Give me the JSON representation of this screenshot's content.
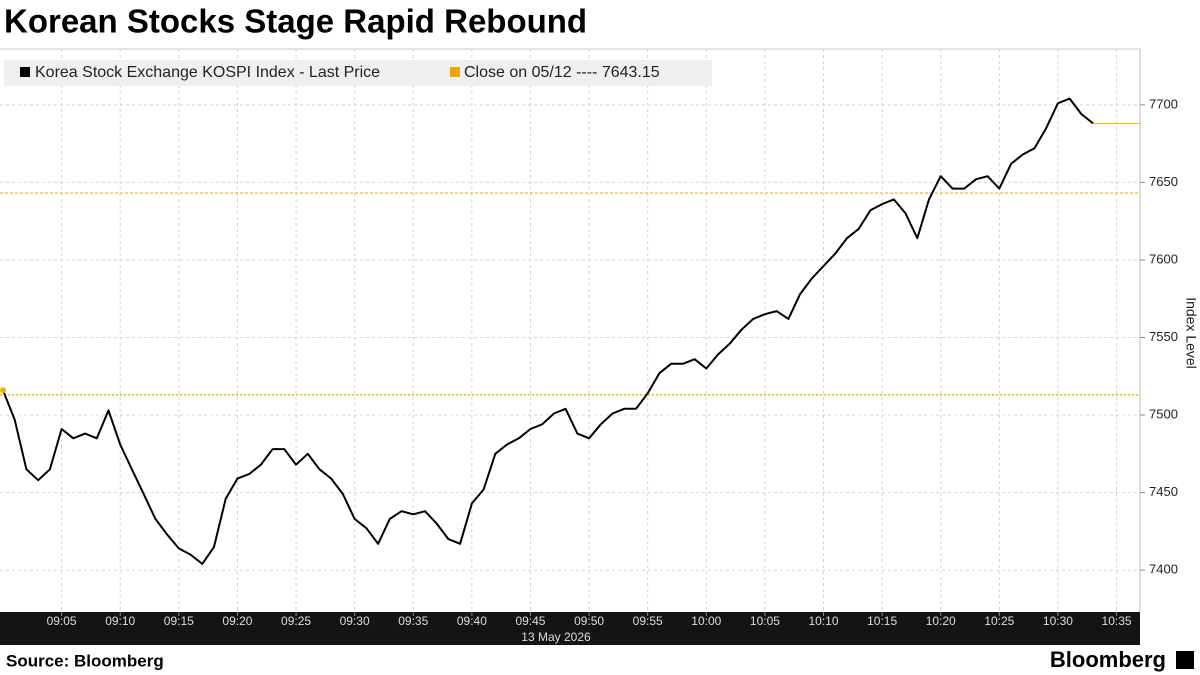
{
  "chart_data": {
    "type": "line",
    "title": "Korean Stocks Stage Rapid Rebound",
    "source": "Source: Bloomberg",
    "brand": "Bloomberg",
    "x_label": "13 May 2026",
    "y_label": "Index Level",
    "x": [
      "09:00",
      "09:01",
      "09:02",
      "09:03",
      "09:04",
      "09:05",
      "09:06",
      "09:07",
      "09:08",
      "09:09",
      "09:10",
      "09:11",
      "09:12",
      "09:13",
      "09:14",
      "09:15",
      "09:16",
      "09:17",
      "09:18",
      "09:19",
      "09:20",
      "09:21",
      "09:22",
      "09:23",
      "09:24",
      "09:25",
      "09:26",
      "09:27",
      "09:28",
      "09:29",
      "09:30",
      "09:31",
      "09:32",
      "09:33",
      "09:34",
      "09:35",
      "09:36",
      "09:37",
      "09:38",
      "09:39",
      "09:40",
      "09:41",
      "09:42",
      "09:43",
      "09:44",
      "09:45",
      "09:46",
      "09:47",
      "09:48",
      "09:49",
      "09:50",
      "09:51",
      "09:52",
      "09:53",
      "09:54",
      "09:55",
      "09:56",
      "09:57",
      "09:58",
      "09:59",
      "10:00",
      "10:01",
      "10:02",
      "10:03",
      "10:04",
      "10:05",
      "10:06",
      "10:07",
      "10:08",
      "10:09",
      "10:10",
      "10:11",
      "10:12",
      "10:13",
      "10:14",
      "10:15",
      "10:16",
      "10:17",
      "10:18",
      "10:19",
      "10:20",
      "10:21",
      "10:22",
      "10:23",
      "10:24",
      "10:25",
      "10:26",
      "10:27",
      "10:28",
      "10:29",
      "10:30",
      "10:31",
      "10:32",
      "10:33"
    ],
    "series": [
      {
        "name": "Korea Stock Exchange KOSPI Index - Last Price",
        "color": "#000000",
        "values": [
          7516,
          7497,
          7465,
          7458,
          7465,
          7491,
          7485,
          7488,
          7485,
          7503,
          7481,
          7465,
          7449,
          7433,
          7423,
          7414,
          7410,
          7404,
          7415,
          7446,
          7459,
          7462,
          7468,
          7478,
          7478,
          7468,
          7475,
          7465,
          7459,
          7449,
          7433,
          7427,
          7417,
          7433,
          7438,
          7436,
          7438,
          7430,
          7420,
          7417,
          7443,
          7452,
          7475,
          7481,
          7485,
          7491,
          7494,
          7501,
          7504,
          7488,
          7485,
          7494,
          7501,
          7504,
          7504,
          7514,
          7527,
          7533,
          7533,
          7536,
          7530,
          7539,
          7546,
          7555,
          7562,
          7565,
          7567,
          7562,
          7578,
          7588,
          7596,
          7604,
          7614,
          7620,
          7632,
          7636,
          7639,
          7630,
          7614,
          7639,
          7654,
          7646,
          7646,
          7652,
          7654,
          7646,
          7662,
          7668,
          7672,
          7685,
          7701,
          7704,
          7694,
          7688
        ]
      },
      {
        "name": "Close on 05/12 ---- 7643.15",
        "color": "#f0a30a",
        "value": 7643.15
      }
    ],
    "reference_lines": [
      7513
    ],
    "xlim": [
      "09:00",
      "10:37"
    ],
    "xticks": [
      "09:05",
      "09:10",
      "09:15",
      "09:20",
      "09:25",
      "09:30",
      "09:35",
      "09:40",
      "09:45",
      "09:50",
      "09:55",
      "10:00",
      "10:05",
      "10:10",
      "10:15",
      "10:20",
      "10:25",
      "10:30",
      "10:35"
    ],
    "ylim": [
      7373,
      7736
    ],
    "yticks": [
      7400,
      7450,
      7500,
      7550,
      7600,
      7650,
      7700
    ],
    "grid": true
  }
}
